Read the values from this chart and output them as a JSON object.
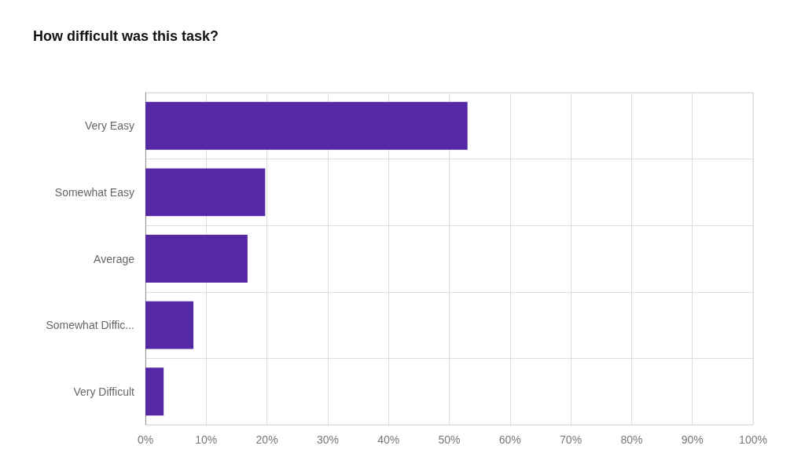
{
  "chart_data": {
    "type": "bar",
    "title": "How difficult was this task?",
    "orientation": "horizontal",
    "categories": [
      "Very Easy",
      "Somewhat Easy",
      "Average",
      "Somewhat Diffic...",
      "Very Difficult"
    ],
    "values": [
      53.0,
      19.7,
      16.8,
      7.9,
      3.0
    ],
    "color": "#5529a6",
    "xlim": [
      0,
      100
    ],
    "xticks": [
      {
        "value": 0,
        "label": "0%"
      },
      {
        "value": 10,
        "label": "10%"
      },
      {
        "value": 20,
        "label": "20%"
      },
      {
        "value": 30,
        "label": "30%"
      },
      {
        "value": 40,
        "label": "40%"
      },
      {
        "value": 50,
        "label": "50%"
      },
      {
        "value": 60,
        "label": "60%"
      },
      {
        "value": 70,
        "label": "70%"
      },
      {
        "value": 80,
        "label": "80%"
      },
      {
        "value": 90,
        "label": "90%"
      },
      {
        "value": 100,
        "label": "100%"
      }
    ],
    "grid": true
  }
}
